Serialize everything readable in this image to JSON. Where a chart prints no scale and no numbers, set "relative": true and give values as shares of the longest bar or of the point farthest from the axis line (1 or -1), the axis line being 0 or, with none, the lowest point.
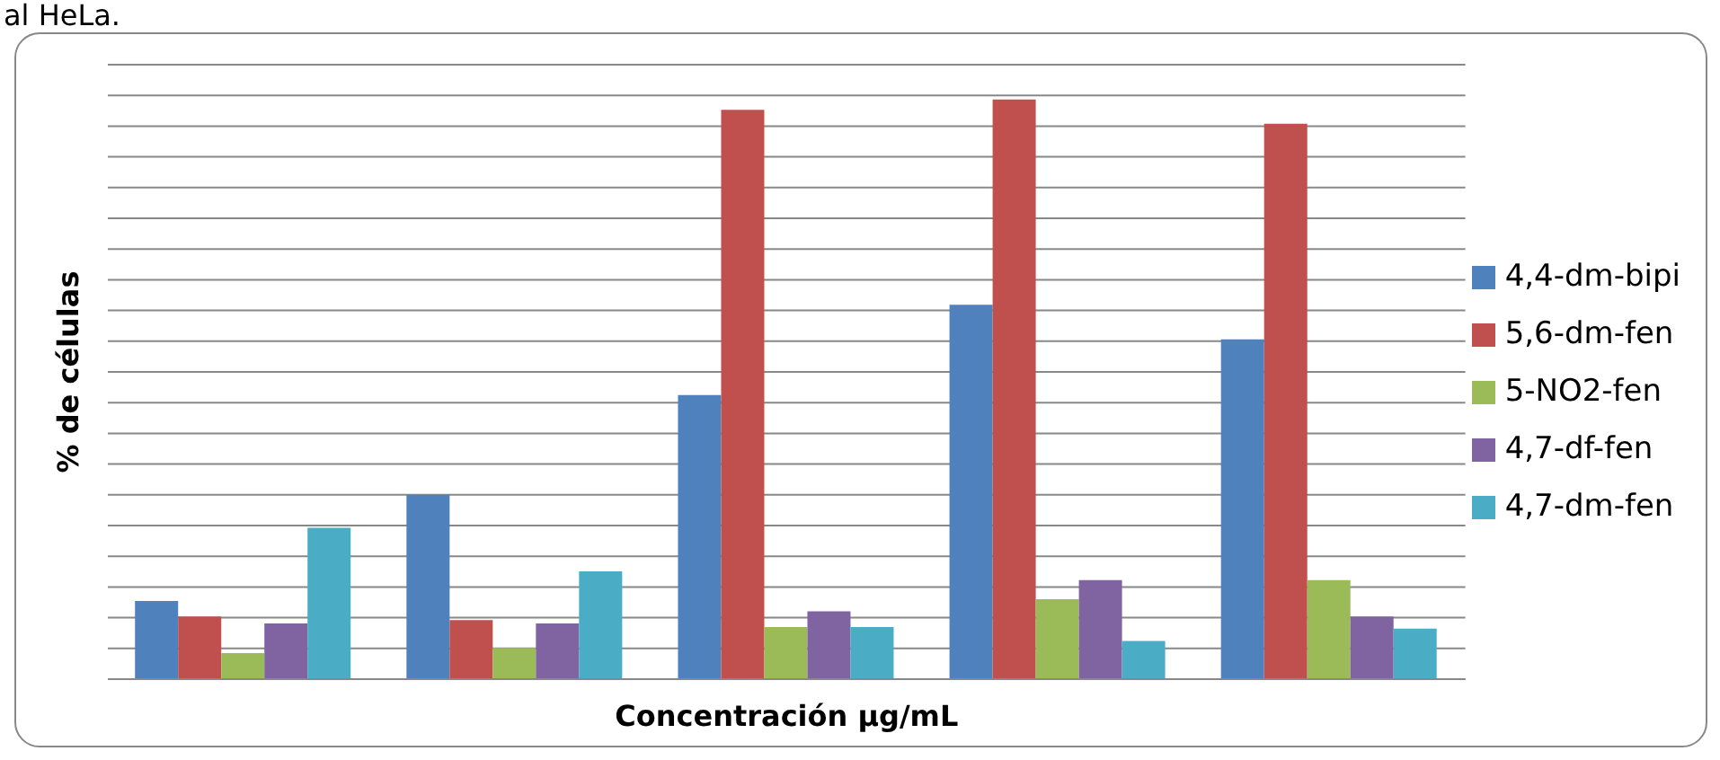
{
  "chart_data": {
    "type": "bar",
    "relative": true,
    "xlabel": "Concentración µg/mL",
    "ylabel": "% de células",
    "annotations": [
      "al HeLa."
    ],
    "categories": [
      null,
      null,
      null,
      null,
      null
    ],
    "grid": "y",
    "legend": "right",
    "series": [
      {
        "name": "4,4-dm-bipi",
        "color": "#4f81bd",
        "values": [
          0.135,
          0.318,
          0.49,
          0.646,
          0.586
        ]
      },
      {
        "name": "5,6-dm-fen",
        "color": "#c0504d",
        "values": [
          0.108,
          0.102,
          0.982,
          1,
          0.958
        ]
      },
      {
        "name": "5-NO2-fen",
        "color": "#9bbb59",
        "values": [
          0.045,
          0.054,
          0.09,
          0.138,
          0.171
        ]
      },
      {
        "name": "4,7-df-fen",
        "color": "#8064a2",
        "values": [
          0.096,
          0.096,
          0.117,
          0.171,
          0.108
        ]
      },
      {
        "name": "4,7-dm-fen",
        "color": "#4bacc6",
        "values": [
          0.261,
          0.186,
          0.09,
          0.066,
          0.087
        ]
      }
    ]
  }
}
